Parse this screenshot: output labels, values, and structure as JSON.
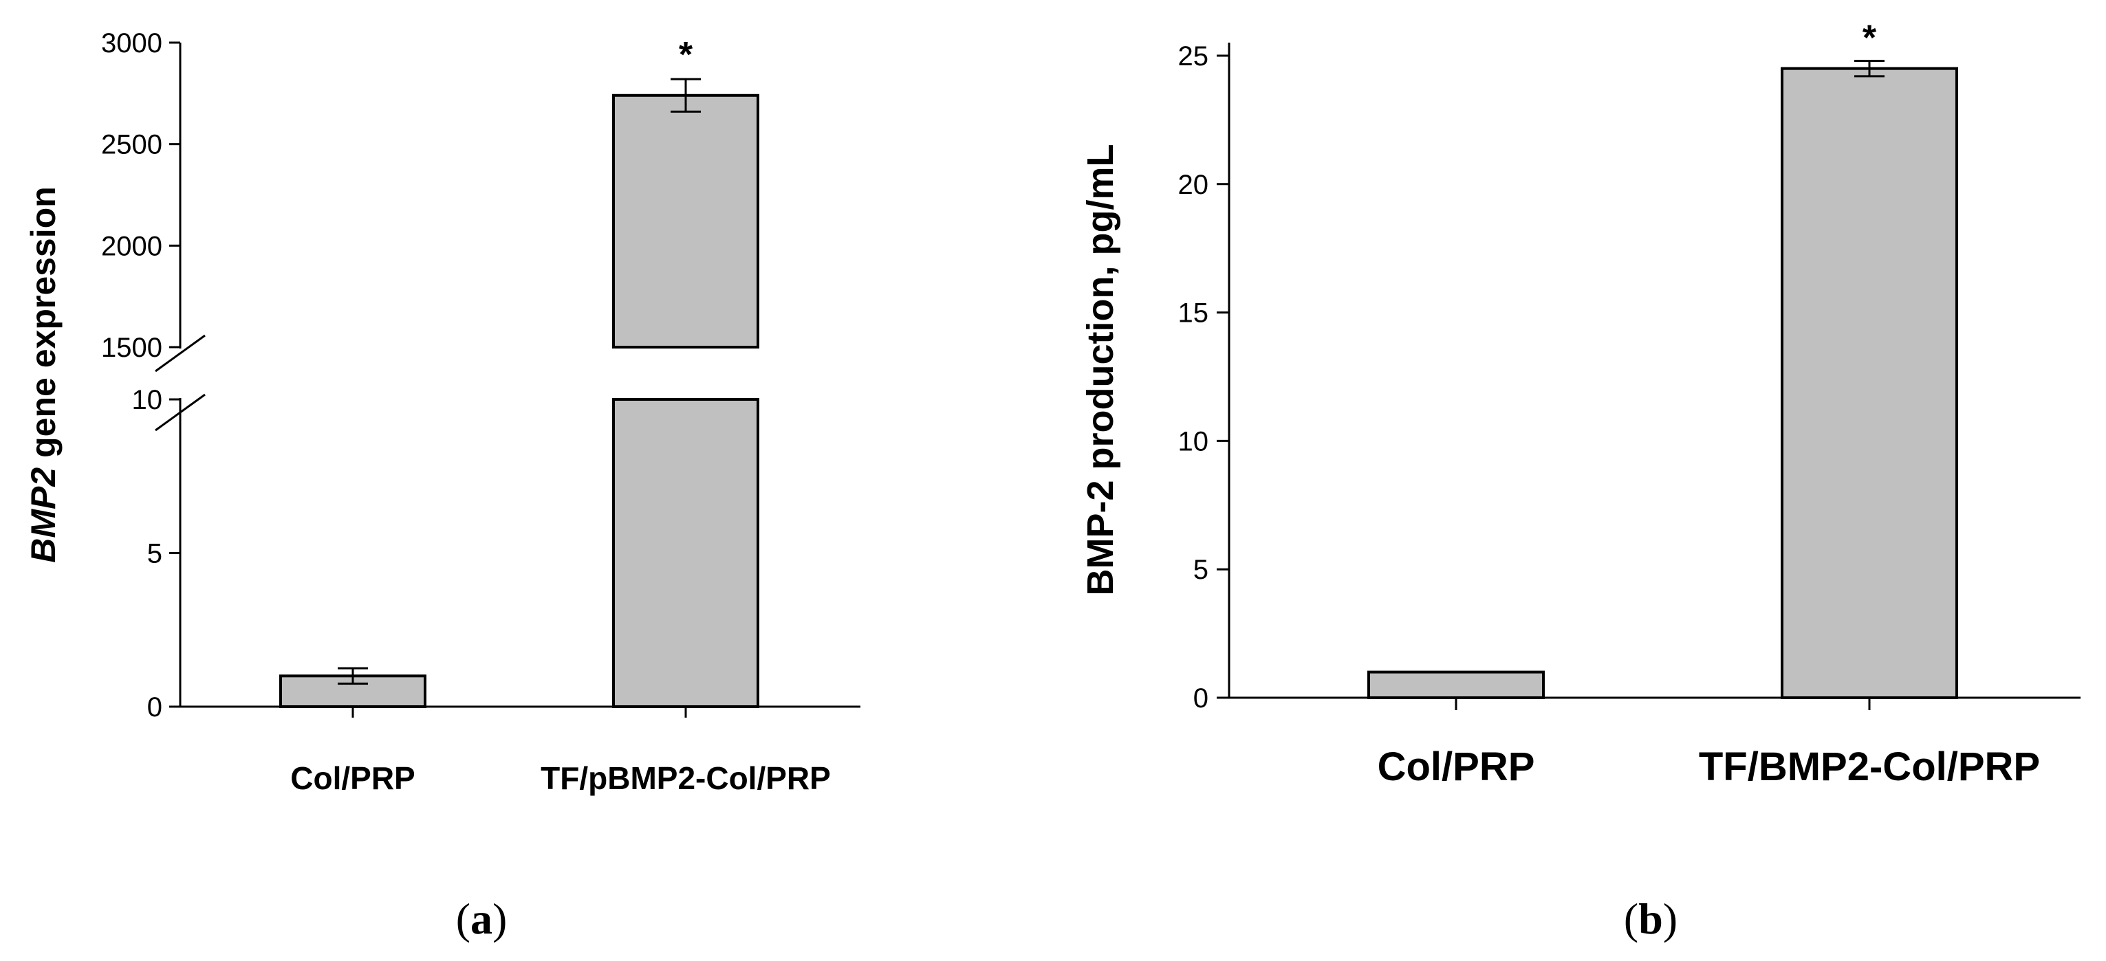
{
  "colors": {
    "bar_fill": "#c0c0c0",
    "bar_stroke": "#000000",
    "axis": "#000000",
    "background": "#ffffff"
  },
  "chart_data": [
    {
      "id": "a",
      "type": "bar",
      "panel_label_prefix": "(",
      "panel_label_letter": "a",
      "panel_label_suffix": ")",
      "ylabel_italic": "BMP2",
      "ylabel_rest": " gene expression",
      "xlabel": "",
      "categories": [
        "Col/PRP",
        "TF/pBMP2-Col/PRP"
      ],
      "values": [
        1,
        2740
      ],
      "errors": [
        0.25,
        80
      ],
      "significance": [
        "",
        "*"
      ],
      "axis_break": {
        "lower_max": 10,
        "upper_min": 1500
      },
      "ylim_lower": [
        0,
        10
      ],
      "ylim_upper": [
        1500,
        3000
      ],
      "yticks_lower": [
        "0",
        "5",
        "10"
      ],
      "yticks_upper": [
        "1500",
        "2000",
        "2500",
        "3000"
      ],
      "grid": false,
      "legend": "none"
    },
    {
      "id": "b",
      "type": "bar",
      "panel_label_prefix": "(",
      "panel_label_letter": "b",
      "panel_label_suffix": ")",
      "ylabel": "BMP-2 production, pg/mL",
      "xlabel": "",
      "categories": [
        "Col/PRP",
        "TF/BMP2-Col/PRP"
      ],
      "values": [
        1,
        24.5
      ],
      "errors": [
        0,
        0.3
      ],
      "significance": [
        "",
        "*"
      ],
      "ylim": [
        0,
        25
      ],
      "yticks": [
        "0",
        "5",
        "10",
        "15",
        "20",
        "25"
      ],
      "grid": false,
      "legend": "none"
    }
  ]
}
